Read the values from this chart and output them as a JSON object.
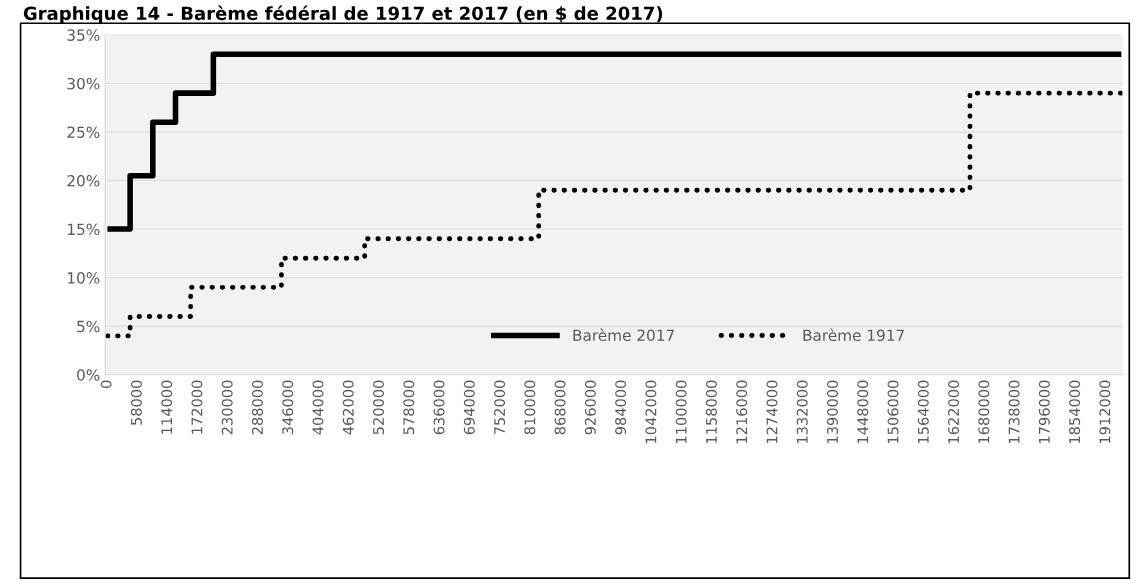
{
  "chart_data": {
    "type": "step",
    "title": "Graphique 14 - Barème fédéral de 1917 et 2017 (en $ de 2017)",
    "categories": [
      "0",
      null,
      null,
      null,
      "58000",
      null,
      null,
      null,
      "114000",
      null,
      null,
      null,
      "172000",
      null,
      null,
      null,
      "230000",
      null,
      null,
      null,
      "288000",
      null,
      null,
      null,
      "346000",
      null,
      null,
      null,
      "404000",
      null,
      null,
      null,
      "462000",
      null,
      null,
      null,
      "520000",
      null,
      null,
      null,
      "578000",
      null,
      null,
      null,
      "636000",
      null,
      null,
      null,
      "694000",
      null,
      null,
      null,
      "752000",
      null,
      null,
      null,
      "810000",
      null,
      null,
      null,
      "868000",
      null,
      null,
      null,
      "926000",
      null,
      null,
      null,
      "984000",
      null,
      null,
      null,
      "1042000",
      null,
      null,
      null,
      "1100000",
      null,
      null,
      null,
      "1158000",
      null,
      null,
      null,
      "1216000",
      null,
      null,
      null,
      "1274000",
      null,
      null,
      null,
      "1332000",
      null,
      null,
      null,
      "1390000",
      null,
      null,
      null,
      "1448000",
      null,
      null,
      null,
      "1506000",
      null,
      null,
      null,
      "1564000",
      null,
      null,
      null,
      "1622000",
      null,
      null,
      null,
      "1680000",
      null,
      null,
      null,
      "1738000",
      null,
      null,
      null,
      "1796000",
      null,
      null,
      null,
      "1854000",
      null,
      null,
      null,
      "1912000",
      null,
      null
    ],
    "series": [
      {
        "name": "Barème 2017",
        "color": "#000000",
        "line_style": "solid",
        "values": [
          15,
          15,
          15,
          20.5,
          20.5,
          20.5,
          26,
          26,
          26,
          29,
          29,
          29,
          29,
          29,
          33,
          33,
          33,
          33,
          33,
          33,
          33,
          33,
          33,
          33,
          33,
          33,
          33,
          33,
          33,
          33,
          33,
          33,
          33,
          33,
          33,
          33,
          33,
          33,
          33,
          33,
          33,
          33,
          33,
          33,
          33,
          33,
          33,
          33,
          33,
          33,
          33,
          33,
          33,
          33,
          33,
          33,
          33,
          33,
          33,
          33,
          33,
          33,
          33,
          33,
          33,
          33,
          33,
          33,
          33,
          33,
          33,
          33,
          33,
          33,
          33,
          33,
          33,
          33,
          33,
          33,
          33,
          33,
          33,
          33,
          33,
          33,
          33,
          33,
          33,
          33,
          33,
          33,
          33,
          33,
          33,
          33,
          33,
          33,
          33,
          33,
          33,
          33,
          33,
          33,
          33,
          33,
          33,
          33,
          33,
          33,
          33,
          33,
          33,
          33,
          33,
          33,
          33,
          33,
          33,
          33,
          33,
          33,
          33,
          33,
          33,
          33,
          33,
          33,
          33,
          33,
          33,
          33,
          33,
          33,
          33
        ]
      },
      {
        "name": "Barème 1917",
        "color": "#000000",
        "line_style": "dotted",
        "values": [
          4,
          4,
          4,
          6,
          6,
          6,
          6,
          6,
          6,
          6,
          6,
          9,
          9,
          9,
          9,
          9,
          9,
          9,
          9,
          9,
          9,
          9,
          9,
          12,
          12,
          12,
          12,
          12,
          12,
          12,
          12,
          12,
          12,
          12,
          14,
          14,
          14,
          14,
          14,
          14,
          14,
          14,
          14,
          14,
          14,
          14,
          14,
          14,
          14,
          14,
          14,
          14,
          14,
          14,
          14,
          14,
          14,
          19,
          19,
          19,
          19,
          19,
          19,
          19,
          19,
          19,
          19,
          19,
          19,
          19,
          19,
          19,
          19,
          19,
          19,
          19,
          19,
          19,
          19,
          19,
          19,
          19,
          19,
          19,
          19,
          19,
          19,
          19,
          19,
          19,
          19,
          19,
          19,
          19,
          19,
          19,
          19,
          19,
          19,
          19,
          19,
          19,
          19,
          19,
          19,
          19,
          19,
          19,
          19,
          19,
          19,
          19,
          19,
          19,
          29,
          29,
          29,
          29,
          29,
          29,
          29,
          29,
          29,
          29,
          29,
          29,
          29,
          29,
          29,
          29,
          29,
          29,
          29,
          29,
          29
        ]
      }
    ],
    "ylim": [
      0,
      35
    ],
    "yticks": [
      {
        "value": 0,
        "label": "0%"
      },
      {
        "value": 5,
        "label": "5%"
      },
      {
        "value": 10,
        "label": "10%"
      },
      {
        "value": 15,
        "label": "15%"
      },
      {
        "value": 20,
        "label": "20%"
      },
      {
        "value": 25,
        "label": "25%"
      },
      {
        "value": 30,
        "label": "30%"
      },
      {
        "value": 35,
        "label": "35%"
      }
    ],
    "grid": "y",
    "legend": "bottom right"
  }
}
